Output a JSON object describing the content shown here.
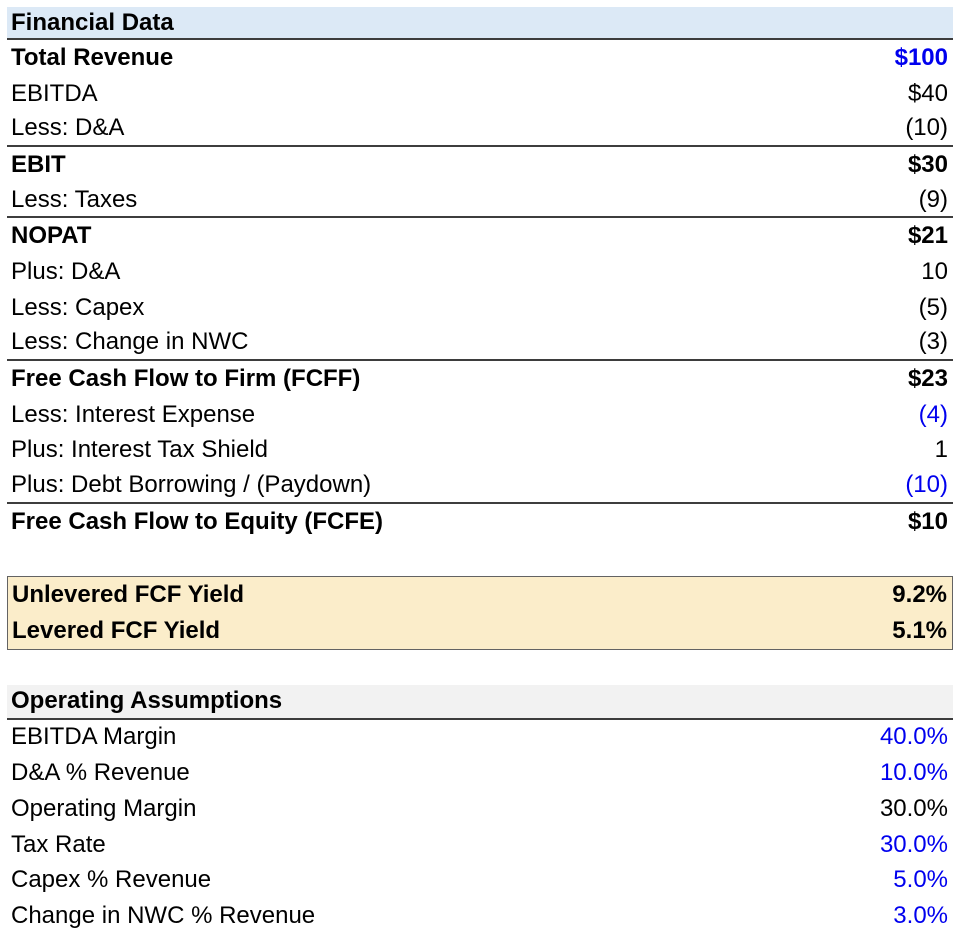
{
  "colors": {
    "input_blue": "#0000ee",
    "financial_header_bg": "#dce9f6",
    "yield_box_bg": "#fbedca",
    "assumptions_header_bg": "#f2f2f2",
    "rule_line": "#3d3d3d"
  },
  "financial_data": {
    "title": "Financial Data",
    "rows": [
      {
        "label": "Total Revenue",
        "value": "$100",
        "bold": true,
        "value_blue": true
      },
      {
        "label": "EBITDA",
        "value": "$40"
      },
      {
        "label": "Less: D&A",
        "value": "(10)",
        "rule": true
      },
      {
        "label": "EBIT",
        "value": "$30",
        "bold": true
      },
      {
        "label": "Less: Taxes",
        "value": "(9)",
        "rule": true
      },
      {
        "label": "NOPAT",
        "value": "$21",
        "bold": true
      },
      {
        "label": "Plus: D&A",
        "value": "10"
      },
      {
        "label": "Less: Capex",
        "value": "(5)"
      },
      {
        "label": "Less: Change in NWC",
        "value": "(3)",
        "rule": true
      },
      {
        "label": "Free Cash Flow to Firm (FCFF)",
        "value": "$23",
        "bold": true
      },
      {
        "label": "Less: Interest Expense",
        "value": "(4)",
        "value_blue": true
      },
      {
        "label": "Plus: Interest Tax Shield",
        "value": "1"
      },
      {
        "label": "Plus: Debt Borrowing / (Paydown)",
        "value": "(10)",
        "value_blue": true,
        "rule": true
      },
      {
        "label": "Free Cash Flow to Equity (FCFE)",
        "value": "$10",
        "bold": true
      }
    ]
  },
  "yields": {
    "rows": [
      {
        "label": "Unlevered FCF Yield",
        "value": "9.2%",
        "bold": true
      },
      {
        "label": "Levered FCF Yield",
        "value": "5.1%",
        "bold": true
      }
    ]
  },
  "operating_assumptions": {
    "title": "Operating Assumptions",
    "rows": [
      {
        "label": "EBITDA Margin",
        "value": "40.0%",
        "value_blue": true
      },
      {
        "label": "D&A % Revenue",
        "value": "10.0%",
        "value_blue": true
      },
      {
        "label": "Operating Margin",
        "value": "30.0%"
      },
      {
        "label": "Tax Rate",
        "value": "30.0%",
        "value_blue": true
      },
      {
        "label": "Capex % Revenue",
        "value": "5.0%",
        "value_blue": true
      },
      {
        "label": "Change in NWC % Revenue",
        "value": "3.0%",
        "value_blue": true
      }
    ]
  }
}
